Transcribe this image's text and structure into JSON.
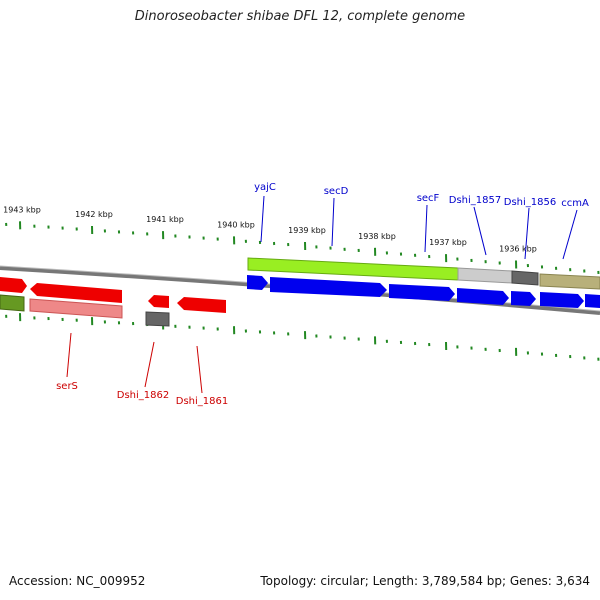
{
  "title": "Dinoroseobacter shibae DFL 12, complete genome",
  "accession_text": "Accession: NC_009952",
  "stats_text": "Topology: circular; Length: 3,789,584 bp; Genes: 3,634",
  "scale_labels": [
    "1943 kbp",
    "1942 kbp",
    "1941 kbp",
    "1940 kbp",
    "1939 kbp",
    "1938 kbp",
    "1937 kbp",
    "1936 kbp"
  ],
  "colors": {
    "forward_cds": "#0000ee",
    "forward_gene": "#99ee22",
    "reverse_cds": "#ee0000",
    "reverse_gene": "#ee8888",
    "pseudo": "#666666",
    "rna": "#b8b07a",
    "label_forward": "#0000cc",
    "label_reverse": "#cc0000",
    "tick": "#228822",
    "backbone": "#777777"
  },
  "gene_labels": {
    "forward": [
      "yajC",
      "secD",
      "secF",
      "Dshi_1857",
      "Dshi_1856",
      "ccmA"
    ],
    "reverse": [
      "serS",
      "Dshi_1862",
      "Dshi_1861"
    ]
  }
}
